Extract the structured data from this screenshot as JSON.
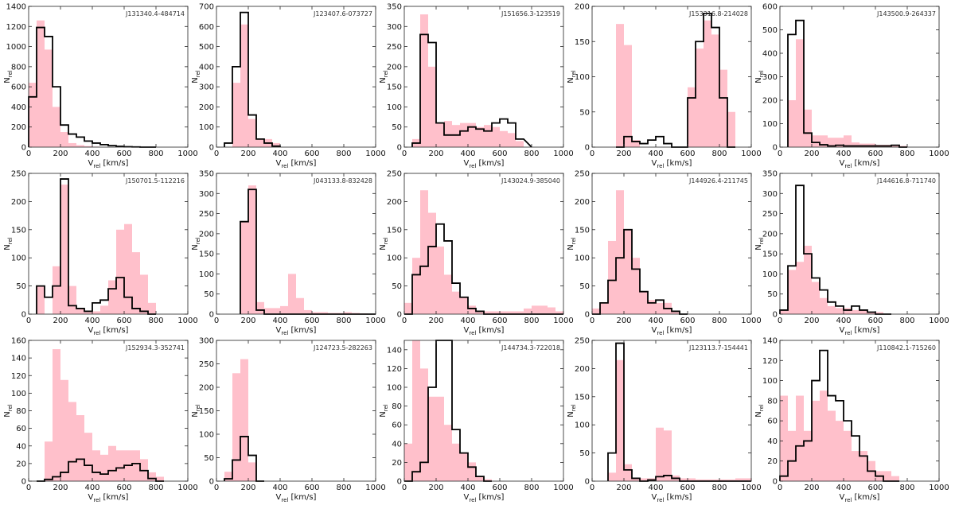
{
  "figure": {
    "xlabel": "V_rel [km/s]",
    "ylabel": "N_rel",
    "colors": {
      "pink": "#ffc0cb",
      "black": "#000000",
      "frame": "#222222"
    }
  },
  "chart_data": [
    {
      "type": "bar",
      "title": "J131340.4-484714",
      "xlabel": "V_rel [km/s]",
      "ylabel": "N_rel",
      "xlim": [
        0,
        1000
      ],
      "ylim": [
        0,
        1400
      ],
      "xticks": [
        0,
        200,
        400,
        600,
        800,
        1000
      ],
      "yticks": [
        0,
        200,
        400,
        600,
        800,
        1000,
        1200,
        1400
      ],
      "bin_edges": [
        0,
        50,
        100,
        150,
        200,
        250,
        300,
        350,
        400,
        450,
        500,
        550,
        600,
        650,
        700,
        750,
        800
      ],
      "series": [
        {
          "name": "pink",
          "values": [
            640,
            1260,
            970,
            400,
            150,
            40,
            20,
            10,
            5,
            0,
            0,
            0,
            0,
            0,
            0,
            0
          ]
        },
        {
          "name": "black",
          "values": [
            500,
            1190,
            1100,
            600,
            220,
            130,
            100,
            60,
            40,
            25,
            15,
            8,
            4,
            2,
            0,
            0
          ]
        }
      ]
    },
    {
      "type": "bar",
      "title": "J123407.6-073727",
      "xlabel": "V_rel [km/s]",
      "ylabel": "N_rel",
      "xlim": [
        0,
        1000
      ],
      "ylim": [
        0,
        700
      ],
      "xticks": [
        0,
        200,
        400,
        600,
        800,
        1000
      ],
      "yticks": [
        0,
        100,
        200,
        300,
        400,
        500,
        600,
        700
      ],
      "bin_edges": [
        50,
        100,
        150,
        200,
        250,
        300,
        350,
        400
      ],
      "series": [
        {
          "name": "pink",
          "values": [
            0,
            320,
            610,
            140,
            40,
            40,
            20
          ]
        },
        {
          "name": "black",
          "values": [
            20,
            400,
            670,
            160,
            40,
            20,
            5
          ]
        }
      ]
    },
    {
      "type": "bar",
      "title": "J151656.3-123519",
      "xlabel": "V_rel [km/s]",
      "ylabel": "N_rel",
      "xlim": [
        0,
        1000
      ],
      "ylim": [
        0,
        350
      ],
      "xticks": [
        0,
        200,
        400,
        600,
        800,
        1000
      ],
      "yticks": [
        0,
        50,
        100,
        150,
        200,
        250,
        300,
        350
      ],
      "bin_edges": [
        50,
        100,
        150,
        200,
        250,
        300,
        350,
        400,
        450,
        500,
        550,
        600,
        650,
        700,
        750,
        800
      ],
      "series": [
        {
          "name": "pink",
          "values": [
            20,
            330,
            200,
            60,
            65,
            55,
            60,
            60,
            50,
            55,
            50,
            40,
            35,
            15
          ]
        },
        {
          "name": "black",
          "values": [
            10,
            280,
            260,
            60,
            30,
            30,
            40,
            50,
            45,
            40,
            60,
            70,
            60,
            20
          ]
        }
      ]
    },
    {
      "type": "bar",
      "title": "J153316.8-214028",
      "xlabel": "V_rel [km/s]",
      "ylabel": "N_rel",
      "xlim": [
        0,
        1000
      ],
      "ylim": [
        0,
        200
      ],
      "xticks": [
        0,
        200,
        400,
        600,
        800,
        1000
      ],
      "yticks": [
        0,
        50,
        100,
        150,
        200
      ],
      "bin_edges": [
        150,
        200,
        250,
        300,
        350,
        400,
        450,
        500,
        550,
        600,
        650,
        700,
        750,
        800,
        850,
        900
      ],
      "series": [
        {
          "name": "pink",
          "values": [
            175,
            145,
            10,
            0,
            0,
            0,
            0,
            0,
            0,
            85,
            140,
            180,
            160,
            110,
            50
          ]
        },
        {
          "name": "black",
          "values": [
            0,
            15,
            8,
            5,
            10,
            15,
            5,
            0,
            0,
            70,
            150,
            190,
            170,
            70,
            0
          ]
        }
      ]
    },
    {
      "type": "bar",
      "title": "J143500.9-264337",
      "xlabel": "V_rel [km/s]",
      "ylabel": "N_rel",
      "xlim": [
        0,
        1000
      ],
      "ylim": [
        0,
        600
      ],
      "xticks": [
        0,
        200,
        400,
        600,
        800,
        1000
      ],
      "yticks": [
        0,
        100,
        200,
        300,
        400,
        500,
        600
      ],
      "bin_edges": [
        50,
        100,
        150,
        200,
        250,
        300,
        350,
        400,
        450,
        500,
        550,
        600,
        650,
        700,
        750,
        800
      ],
      "series": [
        {
          "name": "pink",
          "values": [
            200,
            460,
            160,
            50,
            50,
            40,
            40,
            50,
            20,
            15,
            15,
            10,
            10,
            8,
            5
          ]
        },
        {
          "name": "black",
          "values": [
            480,
            540,
            60,
            20,
            10,
            5,
            8,
            5,
            5,
            5,
            5,
            5,
            5,
            8,
            0
          ]
        }
      ]
    },
    {
      "type": "bar",
      "title": "J150701.5-112216",
      "xlabel": "V_rel [km/s]",
      "ylabel": "N_rel",
      "xlim": [
        0,
        1000
      ],
      "ylim": [
        0,
        250
      ],
      "xticks": [
        0,
        200,
        400,
        600,
        800,
        1000
      ],
      "yticks": [
        0,
        50,
        100,
        150,
        200,
        250
      ],
      "bin_edges": [
        50,
        100,
        150,
        200,
        250,
        300,
        350,
        400,
        450,
        500,
        550,
        600,
        650,
        700,
        750,
        800
      ],
      "series": [
        {
          "name": "pink",
          "values": [
            50,
            0,
            85,
            230,
            50,
            10,
            5,
            5,
            15,
            60,
            150,
            160,
            110,
            70,
            20
          ]
        },
        {
          "name": "black",
          "values": [
            50,
            30,
            50,
            240,
            15,
            10,
            5,
            20,
            25,
            45,
            65,
            30,
            10,
            5,
            0
          ]
        }
      ]
    },
    {
      "type": "bar",
      "title": "J043133.8-832428",
      "xlabel": "V_rel [km/s]",
      "ylabel": "N_rel",
      "xlim": [
        0,
        1000
      ],
      "ylim": [
        0,
        350
      ],
      "xticks": [
        0,
        200,
        400,
        600,
        800,
        1000
      ],
      "yticks": [
        0,
        50,
        100,
        150,
        200,
        250,
        300,
        350
      ],
      "bin_edges": [
        150,
        200,
        250,
        300,
        350,
        400,
        450,
        500,
        550,
        600,
        650,
        700,
        750,
        800,
        850,
        900,
        950,
        1000
      ],
      "series": [
        {
          "name": "pink",
          "values": [
            230,
            320,
            30,
            15,
            15,
            20,
            100,
            40,
            10,
            5,
            5,
            3,
            3,
            5,
            3,
            2,
            0
          ]
        },
        {
          "name": "black",
          "values": [
            230,
            310,
            10,
            0,
            0,
            0,
            0,
            0,
            0,
            0,
            0,
            0,
            0,
            0,
            0,
            0,
            0
          ]
        }
      ]
    },
    {
      "type": "bar",
      "title": "J143024.9-385040",
      "xlabel": "V_rel [km/s]",
      "ylabel": "N_rel",
      "xlim": [
        0,
        1000
      ],
      "ylim": [
        0,
        250
      ],
      "xticks": [
        0,
        200,
        400,
        600,
        800,
        1000
      ],
      "yticks": [
        0,
        50,
        100,
        150,
        200,
        250
      ],
      "bin_edges": [
        0,
        50,
        100,
        150,
        200,
        250,
        300,
        350,
        400,
        450,
        500,
        550,
        600,
        650,
        700,
        750,
        800,
        850,
        900,
        950,
        1000
      ],
      "series": [
        {
          "name": "pink",
          "values": [
            20,
            100,
            220,
            180,
            120,
            70,
            40,
            30,
            15,
            5,
            5,
            5,
            5,
            5,
            5,
            10,
            15,
            15,
            12,
            5
          ]
        },
        {
          "name": "black",
          "values": [
            0,
            70,
            85,
            120,
            160,
            130,
            55,
            30,
            10,
            5,
            0,
            0,
            0,
            0,
            0,
            0,
            0,
            0,
            0,
            0
          ]
        }
      ]
    },
    {
      "type": "bar",
      "title": "J144926.4-211745",
      "xlabel": "V_rel [km/s]",
      "ylabel": "N_rel",
      "xlim": [
        0,
        1000
      ],
      "ylim": [
        0,
        250
      ],
      "xticks": [
        0,
        200,
        400,
        600,
        800,
        1000
      ],
      "yticks": [
        0,
        50,
        100,
        150,
        200,
        250
      ],
      "bin_edges": [
        0,
        50,
        100,
        150,
        200,
        250,
        300,
        350,
        400,
        450,
        500,
        550,
        600
      ],
      "series": [
        {
          "name": "pink",
          "values": [
            10,
            20,
            130,
            220,
            150,
            100,
            40,
            25,
            20,
            20,
            5,
            0
          ]
        },
        {
          "name": "black",
          "values": [
            0,
            20,
            60,
            100,
            150,
            80,
            40,
            20,
            25,
            10,
            5,
            0
          ]
        }
      ]
    },
    {
      "type": "bar",
      "title": "J144616.8-711740",
      "xlabel": "V_rel [km/s]",
      "ylabel": "N_rel",
      "xlim": [
        0,
        1000
      ],
      "ylim": [
        0,
        350
      ],
      "xticks": [
        0,
        200,
        400,
        600,
        800,
        1000
      ],
      "yticks": [
        0,
        50,
        100,
        150,
        200,
        250,
        300,
        350
      ],
      "bin_edges": [
        0,
        50,
        100,
        150,
        200,
        250,
        300,
        350,
        400,
        450,
        500,
        550,
        600,
        650,
        700
      ],
      "series": [
        {
          "name": "pink",
          "values": [
            10,
            110,
            130,
            170,
            80,
            40,
            20,
            15,
            15,
            10,
            10,
            5,
            5,
            0
          ]
        },
        {
          "name": "black",
          "values": [
            10,
            120,
            320,
            150,
            90,
            60,
            30,
            20,
            10,
            20,
            10,
            5,
            0,
            0
          ]
        }
      ]
    },
    {
      "type": "bar",
      "title": "J152934.3-352741",
      "xlabel": "V_rel [km/s]",
      "ylabel": "N_rel",
      "xlim": [
        0,
        1000
      ],
      "ylim": [
        0,
        160
      ],
      "xticks": [
        0,
        200,
        400,
        600,
        800,
        1000
      ],
      "yticks": [
        0,
        20,
        40,
        60,
        80,
        100,
        120,
        140,
        160
      ],
      "bin_edges": [
        50,
        100,
        150,
        200,
        250,
        300,
        350,
        400,
        450,
        500,
        550,
        600,
        650,
        700,
        750,
        800,
        850
      ],
      "series": [
        {
          "name": "pink",
          "values": [
            0,
            45,
            150,
            115,
            90,
            75,
            55,
            35,
            30,
            40,
            35,
            35,
            35,
            25,
            10,
            5
          ]
        },
        {
          "name": "black",
          "values": [
            0,
            2,
            5,
            10,
            22,
            25,
            18,
            10,
            8,
            12,
            15,
            18,
            20,
            12,
            3,
            0
          ]
        }
      ]
    },
    {
      "type": "bar",
      "title": "J124723.5-282263",
      "xlabel": "V_rel [km/s]",
      "ylabel": "N_rel",
      "xlim": [
        0,
        1000
      ],
      "ylim": [
        0,
        300
      ],
      "xticks": [
        0,
        200,
        400,
        600,
        800,
        1000
      ],
      "yticks": [
        0,
        50,
        100,
        150,
        200,
        250,
        300
      ],
      "bin_edges": [
        50,
        100,
        150,
        200,
        250,
        300
      ],
      "series": [
        {
          "name": "pink",
          "values": [
            20,
            230,
            260,
            40,
            0
          ]
        },
        {
          "name": "black",
          "values": [
            5,
            45,
            95,
            55,
            0
          ]
        }
      ]
    },
    {
      "type": "bar",
      "title": "J144734.3-722018",
      "xlabel": "V_rel [km/s]",
      "ylabel": "N_rel",
      "xlim": [
        0,
        1000
      ],
      "ylim": [
        0,
        150
      ],
      "xticks": [
        0,
        200,
        400,
        600,
        800,
        1000
      ],
      "yticks": [
        0,
        20,
        40,
        60,
        80,
        100,
        120,
        140
      ],
      "bin_edges": [
        0,
        50,
        100,
        150,
        200,
        250,
        300,
        350,
        400,
        450,
        500,
        550
      ],
      "series": [
        {
          "name": "pink",
          "values": [
            40,
            150,
            120,
            90,
            90,
            60,
            40,
            30,
            20,
            5,
            2
          ]
        },
        {
          "name": "black",
          "values": [
            0,
            10,
            20,
            100,
            150,
            155,
            55,
            30,
            15,
            5,
            0
          ]
        }
      ]
    },
    {
      "type": "bar",
      "title": "J123113.7-154441",
      "xlabel": "V_rel [km/s]",
      "ylabel": "N_rel",
      "xlim": [
        0,
        1000
      ],
      "ylim": [
        0,
        250
      ],
      "xticks": [
        0,
        200,
        400,
        600,
        800,
        1000
      ],
      "yticks": [
        0,
        50,
        100,
        150,
        200,
        250
      ],
      "bin_edges": [
        100,
        150,
        200,
        250,
        300,
        350,
        400,
        450,
        500,
        550,
        600,
        650,
        700,
        750,
        800,
        850,
        900,
        950,
        1000
      ],
      "series": [
        {
          "name": "pink",
          "values": [
            15,
            215,
            30,
            5,
            5,
            5,
            95,
            90,
            10,
            5,
            5,
            3,
            3,
            3,
            3,
            3,
            5,
            5
          ]
        },
        {
          "name": "black",
          "values": [
            50,
            245,
            20,
            5,
            0,
            2,
            8,
            10,
            5,
            0,
            0,
            0,
            0,
            0,
            0,
            0,
            0,
            0
          ]
        }
      ]
    },
    {
      "type": "bar",
      "title": "J110842.1-715260",
      "xlabel": "V_rel [km/s]",
      "ylabel": "N_rel",
      "xlim": [
        0,
        1000
      ],
      "ylim": [
        0,
        140
      ],
      "xticks": [
        0,
        200,
        400,
        600,
        800,
        1000
      ],
      "yticks": [
        0,
        20,
        40,
        60,
        80,
        100,
        120,
        140
      ],
      "bin_edges": [
        0,
        50,
        100,
        150,
        200,
        250,
        300,
        350,
        400,
        450,
        500,
        550,
        600,
        650,
        700,
        750
      ],
      "series": [
        {
          "name": "pink",
          "values": [
            85,
            50,
            85,
            50,
            80,
            90,
            70,
            60,
            50,
            30,
            30,
            20,
            10,
            10,
            5
          ]
        },
        {
          "name": "black",
          "values": [
            5,
            20,
            35,
            40,
            100,
            130,
            85,
            80,
            60,
            45,
            25,
            10,
            5,
            0,
            0
          ]
        }
      ]
    }
  ]
}
